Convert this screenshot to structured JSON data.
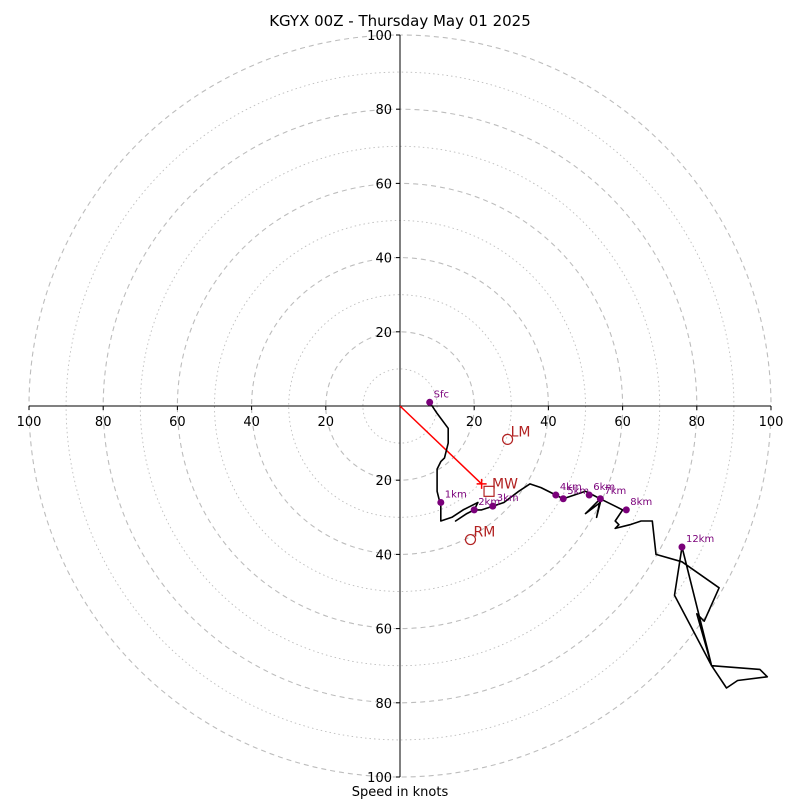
{
  "chart_data": {
    "type": "line",
    "subtype": "hodograph",
    "title": "KGYX 00Z - Thursday May 01 2025",
    "xlabel": "Speed in knots",
    "range": [
      -100,
      100
    ],
    "ring_step_major": 20,
    "ring_step_minor": 10,
    "x_ticks": [
      {
        "value": -100,
        "label": "100"
      },
      {
        "value": -80,
        "label": "80"
      },
      {
        "value": -60,
        "label": "60"
      },
      {
        "value": -40,
        "label": "40"
      },
      {
        "value": -20,
        "label": "20"
      },
      {
        "value": 20,
        "label": "20"
      },
      {
        "value": 40,
        "label": "40"
      },
      {
        "value": 60,
        "label": "60"
      },
      {
        "value": 80,
        "label": "80"
      },
      {
        "value": 100,
        "label": "100"
      }
    ],
    "y_ticks": [
      {
        "value": 100,
        "label": "100"
      },
      {
        "value": 80,
        "label": "80"
      },
      {
        "value": 60,
        "label": "60"
      },
      {
        "value": 40,
        "label": "40"
      },
      {
        "value": 20,
        "label": "20"
      },
      {
        "value": -20,
        "label": "20"
      },
      {
        "value": -40,
        "label": "40"
      },
      {
        "value": -60,
        "label": "60"
      },
      {
        "value": -80,
        "label": "80"
      },
      {
        "value": -100,
        "label": "100"
      }
    ],
    "trace": [
      [
        8,
        1
      ],
      [
        10,
        -2
      ],
      [
        13,
        -6
      ],
      [
        13,
        -10
      ],
      [
        12,
        -14
      ],
      [
        11,
        -15
      ],
      [
        10,
        -17
      ],
      [
        10,
        -23
      ],
      [
        11,
        -27
      ],
      [
        11,
        -31
      ],
      [
        14,
        -30
      ],
      [
        17,
        -28
      ],
      [
        19,
        -27
      ],
      [
        21,
        -26
      ],
      [
        20,
        -28
      ],
      [
        18,
        -29
      ],
      [
        15,
        -31
      ],
      [
        18,
        -29
      ],
      [
        20,
        -28
      ],
      [
        22,
        -28
      ],
      [
        25,
        -27
      ],
      [
        28,
        -26
      ],
      [
        32,
        -23
      ],
      [
        35,
        -21
      ],
      [
        38,
        -22
      ],
      [
        42,
        -24
      ],
      [
        44,
        -25
      ],
      [
        47,
        -24
      ],
      [
        50,
        -23
      ],
      [
        52,
        -24
      ],
      [
        54,
        -25
      ],
      [
        51,
        -28
      ],
      [
        50,
        -29
      ],
      [
        54,
        -26
      ],
      [
        53,
        -30
      ],
      [
        54,
        -25
      ],
      [
        58,
        -27
      ],
      [
        60,
        -28
      ],
      [
        58,
        -31
      ],
      [
        59,
        -32
      ],
      [
        58,
        -33
      ],
      [
        62,
        -32
      ],
      [
        65,
        -31
      ],
      [
        68,
        -31
      ],
      [
        69,
        -40
      ],
      [
        76,
        -42
      ],
      [
        86,
        -49
      ],
      [
        82,
        -58
      ],
      [
        80,
        -56
      ],
      [
        84,
        -70
      ],
      [
        74,
        -51
      ],
      [
        76,
        -38
      ],
      [
        84,
        -70
      ],
      [
        97,
        -71
      ],
      [
        99,
        -73
      ],
      [
        91,
        -74
      ],
      [
        88,
        -76
      ],
      [
        84,
        -70
      ]
    ],
    "height_markers": [
      {
        "label": "Sfc",
        "u": 8,
        "v": 1
      },
      {
        "label": "1km",
        "u": 11,
        "v": -26
      },
      {
        "label": "2km",
        "u": 20,
        "v": -28
      },
      {
        "label": "3km",
        "u": 25,
        "v": -27
      },
      {
        "label": "4km",
        "u": 42,
        "v": -24
      },
      {
        "label": "5km",
        "u": 44,
        "v": -25
      },
      {
        "label": "6km",
        "u": 51,
        "v": -24
      },
      {
        "label": "7km",
        "u": 54,
        "v": -25
      },
      {
        "label": "8km",
        "u": 61,
        "v": -28
      },
      {
        "label": "12km",
        "u": 76,
        "v": -38
      }
    ],
    "storm_motion": [
      {
        "label": "LM",
        "u": 29,
        "v": -9,
        "marker": "circle"
      },
      {
        "label": "MW",
        "u": 24,
        "v": -23,
        "marker": "square"
      },
      {
        "label": "RM",
        "u": 19,
        "v": -36,
        "marker": "circle"
      }
    ],
    "shear_vector": {
      "from": [
        0,
        0
      ],
      "to": [
        22,
        -21
      ]
    },
    "colors": {
      "trace": "#000000",
      "markers": "#7a007a",
      "storm_motion": "#b22222",
      "shear_vector": "#ff0000",
      "rings": "#bdbdbd",
      "axes": "#000000"
    },
    "grid": true
  }
}
